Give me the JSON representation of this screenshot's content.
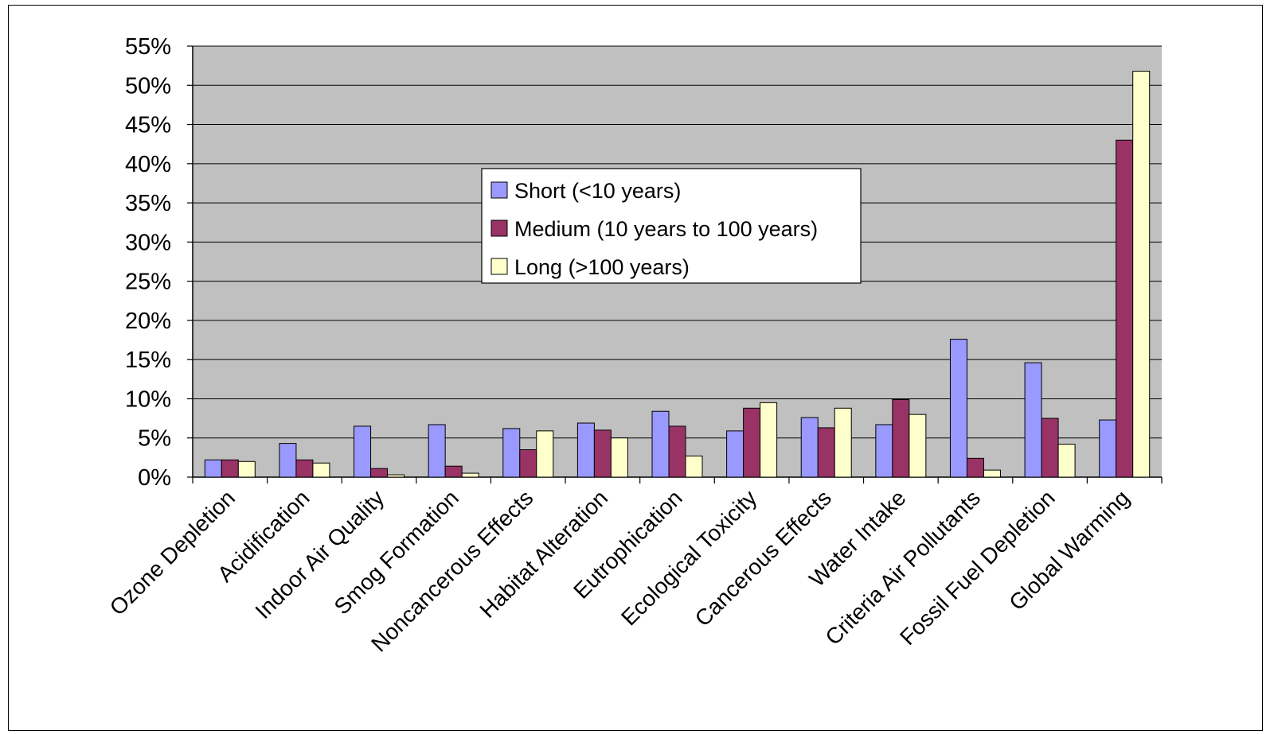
{
  "chart_data": {
    "type": "bar",
    "title": "",
    "xlabel": "",
    "ylabel": "",
    "ylim": [
      0,
      55
    ],
    "y_ticks": [
      "0%",
      "5%",
      "10%",
      "15%",
      "20%",
      "25%",
      "30%",
      "35%",
      "40%",
      "45%",
      "50%",
      "55%"
    ],
    "grid": true,
    "legend_position": "center-top",
    "plot_background": "#c0c0c0",
    "categories": [
      "Ozone Depletion",
      "Acidification",
      "Indoor Air Quality",
      "Smog Formation",
      "Noncancerous Effects",
      "Habitat Alteration",
      "Eutrophication",
      "Ecological Toxicity",
      "Cancerous Effects",
      "Water Intake",
      "Criteria Air Pollutants",
      "Fossil Fuel Depletion",
      "Global Warming"
    ],
    "series": [
      {
        "name": "Short (<10 years)",
        "color": "#9999ff",
        "values": [
          2.2,
          4.3,
          6.5,
          6.7,
          6.2,
          6.9,
          8.4,
          5.9,
          7.6,
          6.7,
          17.6,
          14.6,
          7.3
        ]
      },
      {
        "name": "Medium (10 years to 100 years)",
        "color": "#993366",
        "values": [
          2.2,
          2.2,
          1.1,
          1.4,
          3.5,
          6.0,
          6.5,
          8.8,
          6.3,
          9.9,
          2.4,
          7.5,
          43.0
        ]
      },
      {
        "name": "Long (>100 years)",
        "color": "#ffffcc",
        "values": [
          2.0,
          1.8,
          0.3,
          0.5,
          5.9,
          5.0,
          2.7,
          9.5,
          8.8,
          8.0,
          0.9,
          4.2,
          51.8
        ]
      }
    ]
  }
}
